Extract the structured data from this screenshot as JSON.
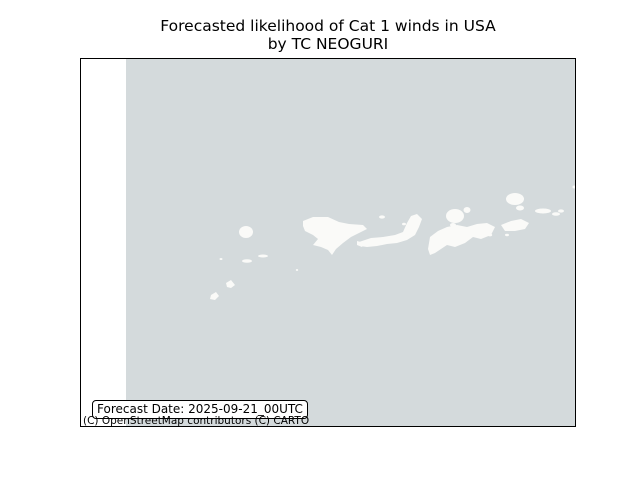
{
  "header": {
    "title_line1": "Forecasted likelihood of Cat 1 winds in USA",
    "title_line2": "by TC NEOGURI"
  },
  "map": {
    "basemap": "CARTO light (OpenStreetMap)",
    "ocean_color": "#d4dadc",
    "land_color": "#fafaf8",
    "no_tile_color": "#ffffff",
    "forecast_label": "Forecast Date: 2025-09-21_00UTC",
    "attribution": "(C) OpenStreetMap contributors (C) CARTO"
  }
}
